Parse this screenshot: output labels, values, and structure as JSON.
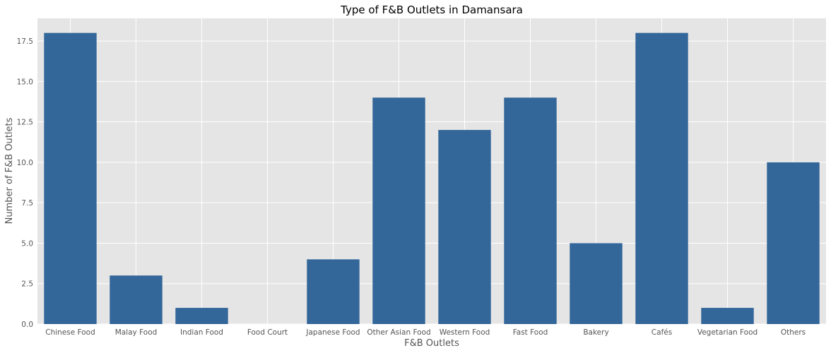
{
  "chart_data": {
    "type": "bar",
    "title": "Type of F&B Outlets in Damansara",
    "xlabel": "F&B Outlets",
    "ylabel": "Number of F&B Outlets",
    "categories": [
      "Chinese Food",
      "Malay Food",
      "Indian Food",
      "Food Court",
      "Japanese Food",
      "Other Asian Food",
      "Western Food",
      "Fast Food",
      "Bakery",
      "Cafés",
      "Vegetarian Food",
      "Others"
    ],
    "values": [
      18,
      3,
      1,
      0,
      4,
      14,
      12,
      14,
      5,
      18,
      1,
      10
    ],
    "ylim": [
      0,
      18.9
    ],
    "yticks": [
      "0.0",
      "2.5",
      "5.0",
      "7.5",
      "10.0",
      "12.5",
      "15.0",
      "17.5"
    ],
    "grid": true,
    "colors": {
      "bar": "#336699",
      "plot_background": "#e5e5e5",
      "grid": "#ffffff"
    }
  }
}
